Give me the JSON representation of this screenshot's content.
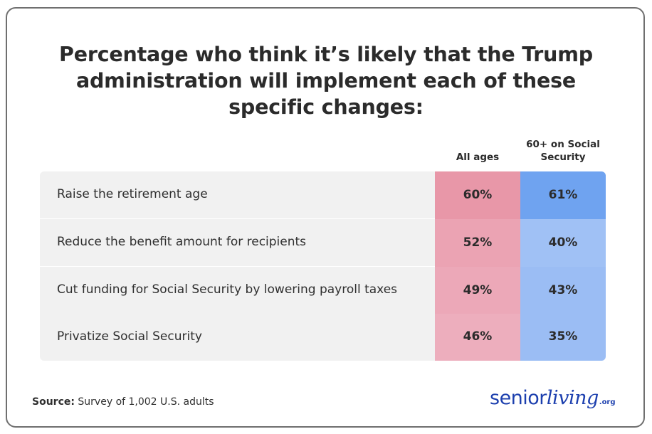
{
  "title_lines": [
    "Percentage who think it’s likely that the Trump",
    "administration will implement each of these",
    "specific changes:"
  ],
  "columns": {
    "all_ages": "All ages",
    "senior_line1": "60+ on Social",
    "senior_line2": "Security"
  },
  "colors": {
    "all_ages_top": "#e897a8",
    "all_ages_rest": [
      "#eba3b3",
      "#eca8b8",
      "#edaebd"
    ],
    "senior_top": "#6fa3f0",
    "senior_rest": [
      "#a0c1f5",
      "#9bbdf4",
      "#9bbdf4"
    ],
    "label_bg": "#f1f1f1",
    "logo": "#1c3fae"
  },
  "chart_data": {
    "type": "table",
    "title": "Percentage who think it’s likely that the Trump administration will implement each of these specific changes:",
    "columns": [
      "All ages",
      "60+ on Social Security"
    ],
    "rows": [
      {
        "label": "Raise the retirement age",
        "all_ages": "60%",
        "senior": "61%",
        "values": [
          60,
          61
        ]
      },
      {
        "label": "Reduce the benefit amount for recipients",
        "all_ages": "52%",
        "senior": "40%",
        "values": [
          52,
          40
        ]
      },
      {
        "label": "Cut funding for Social Security by lowering payroll taxes",
        "all_ages": "49%",
        "senior": "43%",
        "values": [
          49,
          43
        ]
      },
      {
        "label": "Privatize Social Security",
        "all_ages": "46%",
        "senior": "35%",
        "values": [
          46,
          35
        ]
      }
    ],
    "unit": "%"
  },
  "footer": {
    "source_label": "Source:",
    "source_text": " Survey of 1,002 U.S. adults"
  },
  "logo": {
    "part1": "senior",
    "part2": "living",
    "part3": ".org"
  }
}
